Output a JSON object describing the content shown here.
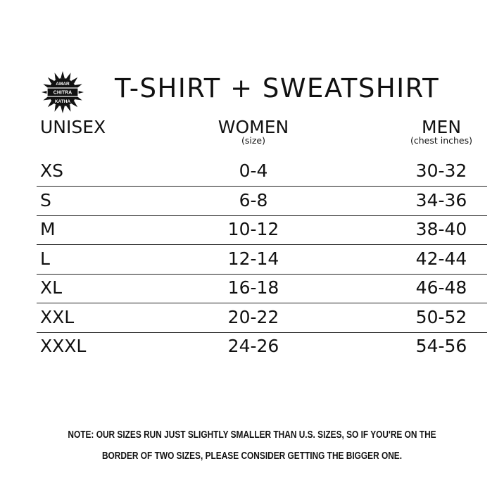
{
  "logo": {
    "text": [
      "AMAR",
      "CHITRA",
      "KATHA"
    ],
    "icon": "sun-badge-logo"
  },
  "title": "T-SHIRT + SWEATSHIRT",
  "columns": [
    {
      "label": "UNISEX",
      "sub": ""
    },
    {
      "label": "WOMEN",
      "sub": "(size)"
    },
    {
      "label": "MEN",
      "sub": "(chest inches)"
    }
  ],
  "rows": [
    [
      "XS",
      "0-4",
      "30-32"
    ],
    [
      "S",
      "6-8",
      "34-36"
    ],
    [
      "M",
      "10-12",
      "38-40"
    ],
    [
      "L",
      "12-14",
      "42-44"
    ],
    [
      "XL",
      "16-18",
      "46-48"
    ],
    [
      "XXL",
      "20-22",
      "50-52"
    ],
    [
      "XXXL",
      "24-26",
      "54-56"
    ]
  ],
  "note": [
    "NOTE: OUR SIZES RUN JUST SLIGHTLY SMALLER THAN U.S. SIZES, SO IF YOU'RE ON THE",
    "BORDER OF TWO SIZES, PLEASE CONSIDER GETTING THE BIGGER ONE."
  ]
}
